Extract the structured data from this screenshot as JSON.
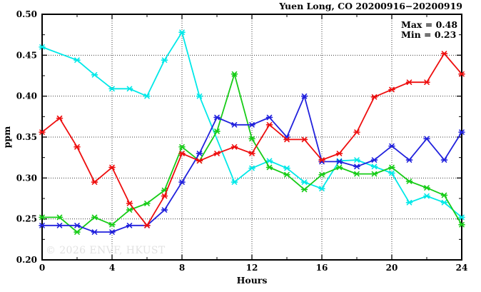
{
  "title": "Yuen Long, CO 20200916−20200919",
  "annotation": {
    "max_label": "Max = 0.48",
    "min_label": "Min = 0.23"
  },
  "watermark": "© 2026 ENVF, HKUST",
  "chart_data": {
    "type": "line",
    "title": "Yuen Long, CO 20200916−20200919",
    "xlabel": "Hours",
    "ylabel": "ppm",
    "xlim": [
      0,
      24
    ],
    "ylim": [
      0.2,
      0.5
    ],
    "grid": "dotted horizontal at 0.25-0.45 step 0.05, dotted vertical at hours 4,8,12,16,20",
    "legend_position": "none",
    "x_major_ticks": [
      0,
      4,
      8,
      12,
      16,
      20,
      24
    ],
    "x_tick_labels": [
      "0",
      "4",
      "8",
      "12",
      "16",
      "20",
      "24"
    ],
    "x_minor_ticks": [
      2,
      6,
      10,
      14,
      18,
      22
    ],
    "y_major_ticks": [
      0.2,
      0.25,
      0.3,
      0.35,
      0.4,
      0.45,
      0.5
    ],
    "y_tick_labels": [
      "0.20",
      "0.25",
      "0.30",
      "0.35",
      "0.40",
      "0.45",
      "0.50"
    ],
    "y_minor_ticks": [
      0.225,
      0.275,
      0.325,
      0.375,
      0.425,
      0.475
    ],
    "stat_max": 0.48,
    "stat_min": 0.23,
    "x": [
      0,
      1,
      2,
      3,
      4,
      5,
      6,
      7,
      8,
      9,
      10,
      11,
      12,
      13,
      14,
      15,
      16,
      17,
      18,
      19,
      20,
      21,
      22,
      23,
      24
    ],
    "series": [
      {
        "name": "cyan",
        "color": "#00e8e8",
        "values": [
          0.46,
          null,
          0.444,
          0.426,
          0.409,
          0.409,
          0.4,
          0.444,
          0.478,
          0.4,
          null,
          0.295,
          0.312,
          0.321,
          0.312,
          0.295,
          0.287,
          0.321,
          0.322,
          0.314,
          0.306,
          0.27,
          0.278,
          0.27,
          0.252
        ]
      },
      {
        "name": "green",
        "color": "#17cc17",
        "values": [
          0.252,
          0.252,
          0.234,
          0.252,
          0.243,
          0.261,
          0.269,
          0.285,
          0.338,
          0.321,
          0.357,
          0.427,
          0.348,
          0.313,
          0.304,
          0.286,
          0.304,
          0.313,
          0.305,
          0.305,
          0.313,
          0.296,
          0.288,
          0.279,
          0.243
        ]
      },
      {
        "name": "blue",
        "color": "#2121dd",
        "values": [
          0.242,
          0.242,
          0.242,
          0.234,
          0.234,
          0.242,
          0.242,
          0.261,
          0.295,
          0.33,
          0.374,
          0.365,
          0.365,
          0.374,
          0.35,
          0.4,
          0.32,
          0.32,
          0.314,
          0.322,
          0.339,
          0.322,
          0.348,
          0.322,
          0.356
        ]
      },
      {
        "name": "red",
        "color": "#ee0e0e",
        "values": [
          0.356,
          0.373,
          0.338,
          0.295,
          0.313,
          0.269,
          0.242,
          0.278,
          0.33,
          0.321,
          0.33,
          0.338,
          0.33,
          0.365,
          0.347,
          0.347,
          0.322,
          0.33,
          0.356,
          0.399,
          0.408,
          0.417,
          0.417,
          0.452,
          0.427
        ]
      }
    ]
  }
}
